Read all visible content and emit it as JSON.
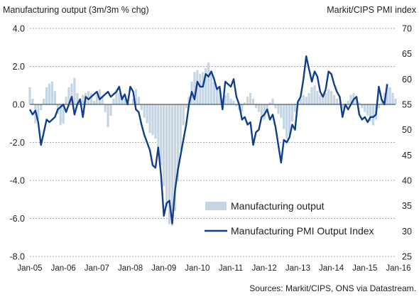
{
  "chart_data": {
    "type": "bar+line",
    "left_axis_title": "Manufacturing output (3m/3m % chg)",
    "right_axis_title": "Markit/CIPS PMI index",
    "source": "Sources: Markit/CIPS, ONS via Datastream.",
    "left_ylim": [
      -8.0,
      4.0
    ],
    "left_ticks": [
      "4.0",
      "2.0",
      "0.0",
      "-2.0",
      "-4.0",
      "-6.0",
      "-8.0"
    ],
    "left_tick_values": [
      4,
      2,
      0,
      -2,
      -4,
      -6,
      -8
    ],
    "right_ylim": [
      25,
      70
    ],
    "right_ticks": [
      "70",
      "65",
      "60",
      "55",
      "50",
      "45",
      "40",
      "35",
      "30",
      "25"
    ],
    "right_tick_values": [
      70,
      65,
      60,
      55,
      50,
      45,
      40,
      35,
      30,
      25
    ],
    "x_tick_labels": [
      "Jan-05",
      "Jan-06",
      "Jan-07",
      "Jan-08",
      "Jan-09",
      "Jan-10",
      "Jan-11",
      "Jan-12",
      "Jan-13",
      "Jan-14",
      "Jan-15",
      "Jan-16"
    ],
    "x_start": "2005-01",
    "x_end": "2016-01",
    "gridlines": "horizontal, dashed",
    "legend_position": "bottom-right, inside plot",
    "colors": {
      "bars": "#c5d5e3",
      "line": "#0f3f8c"
    },
    "series": [
      {
        "name": "Manufacturing output",
        "type": "bar",
        "axis": "left",
        "values": [
          0.9,
          0.3,
          -1.0,
          -0.8,
          -0.3,
          0.3,
          0.9,
          1.1,
          1.2,
          0.7,
          -0.5,
          -1.1,
          -1.0,
          0.4,
          0.9,
          1.1,
          1.4,
          0.6,
          0.3,
          0.5,
          0.6,
          0.7,
          0.6,
          0.2,
          0.5,
          0.8,
          0.4,
          -0.4,
          -1.2,
          -0.6,
          0.3,
          0.8,
          0.6,
          0.5,
          0.3,
          0.2,
          0.0,
          0.3,
          0.8,
          0.4,
          -0.3,
          -0.7,
          -1.0,
          -1.5,
          -1.6,
          -1.8,
          -2.4,
          -3.2,
          -4.3,
          -5.4,
          -6.3,
          -6.4,
          -5.6,
          -4.0,
          -2.4,
          -1.1,
          -0.2,
          0.4,
          1.2,
          1.7,
          1.8,
          1.6,
          1.7,
          1.9,
          2.2,
          1.7,
          1.2,
          0.9,
          0.8,
          0.3,
          0.5,
          0.6,
          0.3,
          0.2,
          -0.1,
          -0.3,
          -0.4,
          0.1,
          0.4,
          0.6,
          0.3,
          -0.2,
          -0.4,
          -0.6,
          -0.8,
          -0.3,
          0.1,
          0.3,
          -0.2,
          -0.5,
          -0.7,
          -1.3,
          -1.8,
          -1.6,
          -0.9,
          -0.4,
          0.1,
          0.3,
          0.5,
          0.4,
          0.6,
          0.9,
          1.0,
          0.7,
          0.5,
          0.4,
          0.6,
          0.8,
          0.7,
          0.5,
          0.3,
          0.1,
          -0.2,
          -0.1,
          0.2,
          0.5,
          0.6,
          0.4,
          0.1,
          -0.2,
          -0.4,
          -0.6,
          -0.9,
          -1.1,
          -0.8,
          -0.2,
          0.3,
          0.6,
          1.1,
          0.9,
          0.6,
          0.3
        ]
      },
      {
        "name": "Manufacturing PMI Output Index",
        "type": "line",
        "axis": "right",
        "values": [
          54.0,
          53.0,
          53.8,
          51.5,
          47.0,
          49.5,
          52.0,
          51.5,
          52.0,
          52.5,
          54.0,
          54.5,
          55.0,
          53.5,
          55.0,
          56.5,
          53.0,
          55.0,
          56.0,
          52.5,
          56.5,
          56.0,
          56.5,
          57.0,
          57.5,
          56.0,
          56.5,
          57.0,
          57.5,
          56.5,
          57.0,
          57.5,
          58.5,
          56.0,
          57.0,
          55.0,
          58.5,
          57.5,
          54.0,
          53.5,
          51.0,
          49.0,
          47.5,
          46.0,
          43.0,
          42.5,
          46.5,
          41.0,
          33.0,
          35.5,
          36.0,
          31.5,
          38.0,
          42.0,
          45.0,
          48.0,
          51.0,
          55.0,
          57.5,
          56.0,
          59.5,
          58.5,
          58.5,
          61.0,
          60.5,
          61.5,
          60.0,
          58.0,
          58.5,
          54.0,
          59.5,
          59.0,
          58.5,
          60.0,
          56.5,
          55.0,
          52.0,
          52.5,
          51.0,
          51.5,
          47.0,
          49.5,
          50.0,
          52.5,
          53.0,
          54.0,
          52.0,
          53.0,
          50.5,
          47.0,
          43.5,
          48.0,
          47.5,
          48.5,
          51.0,
          50.0,
          55.5,
          56.5,
          60.0,
          64.5,
          62.0,
          59.5,
          61.5,
          60.5,
          57.5,
          56.5,
          58.0,
          61.5,
          61.0,
          59.0,
          57.5,
          56.5,
          52.5,
          55.0,
          54.0,
          55.0,
          56.0,
          56.5,
          53.0,
          52.0,
          52.5,
          51.5,
          52.5,
          52.5,
          53.0,
          58.5,
          56.0,
          55.0,
          59.0
        ]
      }
    ]
  }
}
